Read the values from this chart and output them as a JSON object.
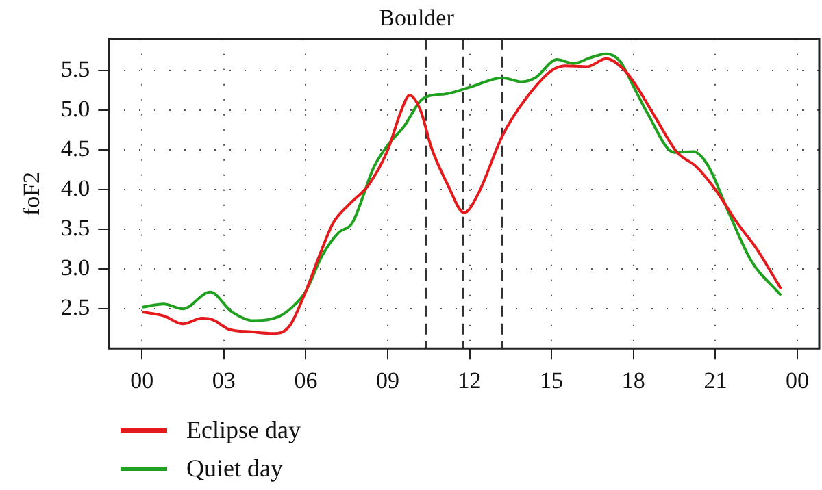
{
  "chart_data": {
    "type": "line",
    "title": "Boulder",
    "ylabel": "foF2",
    "xlim": [
      -1.2,
      24.8
    ],
    "ylim": [
      2.0,
      5.9
    ],
    "xticks": [
      {
        "value": 0,
        "label": "00"
      },
      {
        "value": 3,
        "label": "03"
      },
      {
        "value": 6,
        "label": "06"
      },
      {
        "value": 9,
        "label": "09"
      },
      12,
      15,
      18,
      21,
      {
        "value": 24,
        "label": "00"
      }
    ],
    "yticks": [
      2.5,
      {
        "value": 3,
        "label": "3.0"
      },
      3.5,
      {
        "value": 4,
        "label": "4.0"
      },
      4.5,
      {
        "value": 5,
        "label": "5.0"
      },
      5.5
    ],
    "grid": true,
    "legend": "bottom left",
    "marker": "none",
    "line_style": "solid",
    "ref_lines": [
      {
        "axis": "x",
        "value": 10.4,
        "line_style": "dashed",
        "color": "#333333"
      },
      {
        "axis": "x",
        "value": 11.75,
        "line_style": "dashed",
        "color": "#333333"
      },
      {
        "axis": "x",
        "value": 13.2,
        "line_style": "dashed",
        "color": "#333333"
      }
    ],
    "series": [
      {
        "name": "Eclipse day",
        "color": "#e41a1c",
        "x": [
          0,
          0.8,
          1.5,
          2.2,
          2.6,
          3.2,
          4,
          4.8,
          5.4,
          6,
          6.5,
          7,
          7.6,
          8.3,
          9,
          9.5,
          9.8,
          10.2,
          10.6,
          11.2,
          11.8,
          12.3,
          13.2,
          14,
          15,
          15.5,
          16.3,
          17,
          17.6,
          18,
          18.8,
          19.6,
          20.3,
          21,
          21.8,
          22.5,
          23.4
        ],
        "values": [
          2.46,
          2.41,
          2.31,
          2.38,
          2.36,
          2.24,
          2.21,
          2.19,
          2.28,
          2.72,
          3.17,
          3.58,
          3.82,
          4.06,
          4.5,
          5.0,
          5.19,
          5.0,
          4.53,
          4.06,
          3.71,
          3.94,
          4.68,
          5.12,
          5.5,
          5.56,
          5.55,
          5.65,
          5.53,
          5.36,
          4.91,
          4.47,
          4.29,
          4.0,
          3.58,
          3.26,
          2.75
        ]
      },
      {
        "name": "Quiet day",
        "color": "#1fa01f",
        "x": [
          0,
          0.8,
          1.5,
          2.5,
          3.3,
          4.1,
          5,
          5.5,
          6,
          6.6,
          7.2,
          7.7,
          8.5,
          9,
          9.6,
          10.2,
          10.5,
          11.2,
          12,
          13.2,
          13.9,
          14.4,
          15.2,
          15.8,
          16.4,
          17,
          17.5,
          18,
          18.5,
          19.5,
          20.2,
          20.7,
          21.5,
          22.3,
          23.4
        ],
        "values": [
          2.52,
          2.56,
          2.5,
          2.71,
          2.46,
          2.35,
          2.4,
          2.52,
          2.72,
          3.17,
          3.46,
          3.58,
          4.29,
          4.56,
          4.8,
          5.12,
          5.18,
          5.21,
          5.29,
          5.41,
          5.36,
          5.41,
          5.64,
          5.59,
          5.66,
          5.71,
          5.62,
          5.3,
          4.97,
          4.47,
          4.48,
          4.32,
          3.7,
          3.11,
          2.67
        ]
      }
    ]
  }
}
